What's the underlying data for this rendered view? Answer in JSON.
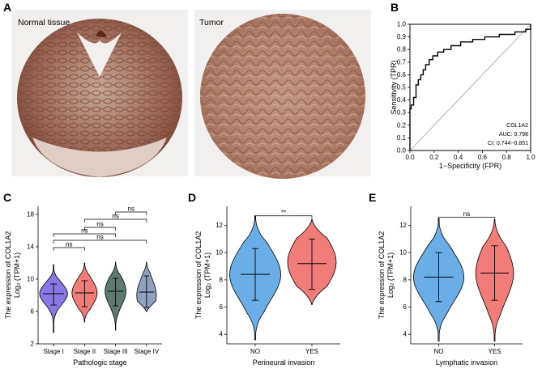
{
  "panel_a": {
    "letter": "A",
    "images": [
      {
        "label": "Normal tissue",
        "kind": "normal"
      },
      {
        "label": "Tumor",
        "kind": "tumor"
      }
    ]
  },
  "chart_data": [
    {
      "panel": "B",
      "type": "line",
      "subtype": "roc",
      "xlabel": "1−Specificity (FPR)",
      "ylabel": "Sensitivity (TPR)",
      "xlim": [
        0,
        1
      ],
      "ylim": [
        0,
        1
      ],
      "x_ticks": [
        "0.0",
        "0.2",
        "0.4",
        "0.6",
        "0.8",
        "1.0"
      ],
      "y_ticks": [
        "0.0",
        "0.1",
        "0.2",
        "0.3",
        "0.4",
        "0.5",
        "0.6",
        "0.7",
        "0.8",
        "0.9",
        "1.0"
      ],
      "reference_diagonal": true,
      "annotation": [
        "COL1A2",
        "AUC: 0.798",
        "CI: 0.744−0.851"
      ],
      "curve": {
        "x": [
          0,
          0,
          0.01,
          0.01,
          0.03,
          0.03,
          0.05,
          0.05,
          0.07,
          0.07,
          0.09,
          0.09,
          0.11,
          0.11,
          0.13,
          0.13,
          0.16,
          0.16,
          0.19,
          0.19,
          0.23,
          0.23,
          0.28,
          0.28,
          0.34,
          0.34,
          0.42,
          0.42,
          0.52,
          0.52,
          0.62,
          0.62,
          0.74,
          0.74,
          0.87,
          0.87,
          0.96,
          0.96,
          1.0,
          1.0
        ],
        "y": [
          0,
          0.33,
          0.33,
          0.36,
          0.36,
          0.42,
          0.42,
          0.52,
          0.52,
          0.56,
          0.56,
          0.6,
          0.6,
          0.64,
          0.64,
          0.68,
          0.68,
          0.72,
          0.72,
          0.75,
          0.75,
          0.78,
          0.78,
          0.8,
          0.8,
          0.83,
          0.83,
          0.86,
          0.86,
          0.88,
          0.88,
          0.9,
          0.9,
          0.92,
          0.92,
          0.94,
          0.94,
          0.96,
          0.96,
          1.0
        ]
      }
    },
    {
      "panel": "C",
      "type": "violin",
      "ylabel_line1": "The expression of COL1A2",
      "ylabel_line2": "Log₂ (TPM+1)",
      "xlabel": "Pathologic stage",
      "ylim": [
        2,
        19
      ],
      "y_ticks": [
        2,
        6,
        10,
        14,
        18
      ],
      "categories": [
        "Stage I",
        "Stage II",
        "Stage III",
        "Stage IV"
      ],
      "colors": [
        "#8b78e6",
        "#f27c77",
        "#5e7a6e",
        "#8fa0c0"
      ],
      "series": [
        {
          "name": "Stage I",
          "min": 3.4,
          "q1": 6.8,
          "median": 8.2,
          "q3": 9.4,
          "max": 11.8,
          "mode": 8.2,
          "width": 1.0
        },
        {
          "name": "Stage II",
          "min": 4.7,
          "q1": 6.6,
          "median": 8.3,
          "q3": 9.8,
          "max": 12.0,
          "mode": 8.3,
          "width": 0.9
        },
        {
          "name": "Stage III",
          "min": 3.7,
          "q1": 6.7,
          "median": 8.5,
          "q3": 10.1,
          "max": 12.1,
          "mode": 8.5,
          "width": 0.75
        },
        {
          "name": "Stage IV",
          "min": 6.0,
          "q1": 6.5,
          "median": 8.4,
          "q3": 10.4,
          "max": 12.1,
          "mode": 8.0,
          "width": 0.7
        }
      ],
      "comparisons": [
        {
          "from": 2,
          "to": 3,
          "label": "ns",
          "y": 18.3
        },
        {
          "from": 1,
          "to": 3,
          "label": "ns",
          "y": 17.4
        },
        {
          "from": 1,
          "to": 2,
          "label": "ns",
          "y": 16.4
        },
        {
          "from": 0,
          "to": 2,
          "label": "ns",
          "y": 15.6
        },
        {
          "from": 0,
          "to": 3,
          "label": "ns",
          "y": 14.8
        },
        {
          "from": 0,
          "to": 1,
          "label": "ns",
          "y": 13.9
        }
      ]
    },
    {
      "panel": "D",
      "type": "violin",
      "ylabel_line1": "The expression of COL1A2",
      "ylabel_line2": "Log₂ (TPM+1)",
      "xlabel": "Perineural invasion",
      "ylim": [
        3.3,
        13.4
      ],
      "y_ticks": [
        4,
        6,
        8,
        10,
        12
      ],
      "categories": [
        "NO",
        "YES"
      ],
      "colors": [
        "#6aaee8",
        "#f27c77"
      ],
      "series": [
        {
          "name": "NO",
          "min": 3.6,
          "q1": 6.5,
          "median": 8.4,
          "q3": 10.3,
          "max": 12.7,
          "mode": 8.4,
          "width": 1.0
        },
        {
          "name": "YES",
          "min": 6.2,
          "q1": 7.3,
          "median": 9.2,
          "q3": 11.0,
          "max": 12.4,
          "mode": 9.3,
          "width": 0.95
        }
      ],
      "comparisons": [
        {
          "from": 0,
          "to": 1,
          "label": "**",
          "y": 12.7
        }
      ]
    },
    {
      "panel": "E",
      "type": "violin",
      "ylabel_line1": "The expression of COL1A2",
      "ylabel_line2": "Log₂ (TPM+1)",
      "xlabel": "Lymphatic invasion",
      "ylim": [
        3.3,
        13.4
      ],
      "y_ticks": [
        4,
        6,
        8,
        10,
        12
      ],
      "categories": [
        "NO",
        "YES"
      ],
      "colors": [
        "#6aaee8",
        "#f27c77"
      ],
      "series": [
        {
          "name": "NO",
          "min": 3.5,
          "q1": 6.4,
          "median": 8.2,
          "q3": 10.0,
          "max": 12.5,
          "mode": 8.2,
          "width": 1.0
        },
        {
          "name": "YES",
          "min": 3.5,
          "q1": 6.5,
          "median": 8.5,
          "q3": 10.5,
          "max": 12.4,
          "mode": 8.5,
          "width": 0.75
        }
      ],
      "comparisons": [
        {
          "from": 0,
          "to": 1,
          "label": "ns",
          "y": 12.6
        }
      ]
    }
  ]
}
